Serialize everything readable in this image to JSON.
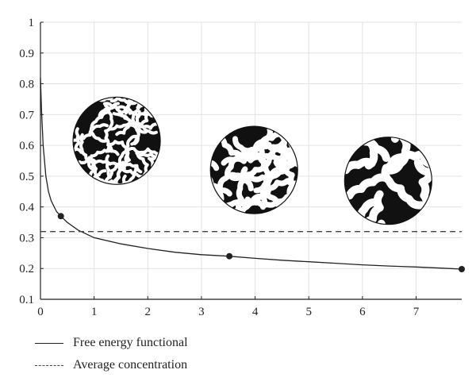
{
  "chart_data": {
    "type": "line",
    "xlim": [
      0,
      7.85
    ],
    "ylim": [
      0.1,
      1.0
    ],
    "x_ticks": [
      0,
      1,
      2,
      3,
      4,
      5,
      6,
      7
    ],
    "y_ticks": [
      0.1,
      0.2,
      0.3,
      0.4,
      0.5,
      0.6,
      0.7,
      0.8,
      0.9,
      1.0
    ],
    "x_tick_labels": [
      "0",
      "1",
      "2",
      "3",
      "4",
      "5",
      "6",
      "7"
    ],
    "y_tick_labels": [
      "0.1",
      "0.2",
      "0.3",
      "0.4",
      "0.5",
      "0.6",
      "0.7",
      "0.8",
      "0.9",
      "1"
    ],
    "grid": true,
    "series": [
      {
        "name": "Free energy functional",
        "style": "solid",
        "x": [
          0.0,
          0.02,
          0.05,
          0.1,
          0.15,
          0.2,
          0.3,
          0.38,
          0.5,
          0.7,
          1.0,
          1.5,
          2.0,
          2.5,
          3.0,
          3.5,
          4.0,
          4.5,
          5.0,
          5.5,
          6.0,
          6.5,
          7.0,
          7.5,
          7.85
        ],
        "y": [
          0.82,
          0.71,
          0.6,
          0.5,
          0.45,
          0.42,
          0.385,
          0.37,
          0.35,
          0.325,
          0.3,
          0.28,
          0.265,
          0.253,
          0.245,
          0.24,
          0.233,
          0.227,
          0.222,
          0.217,
          0.212,
          0.208,
          0.205,
          0.201,
          0.198
        ]
      },
      {
        "name": "Average concentration",
        "style": "dashed",
        "x": [
          0,
          7.85
        ],
        "y": [
          0.32,
          0.32
        ]
      }
    ],
    "markers": [
      {
        "x": 0.38,
        "y": 0.37
      },
      {
        "x": 3.52,
        "y": 0.24
      },
      {
        "x": 7.85,
        "y": 0.198
      }
    ],
    "insets": [
      {
        "x": 1.42,
        "y": 0.615,
        "pattern": "fine labyrinth"
      },
      {
        "x": 3.98,
        "y": 0.52,
        "pattern": "medium labyrinth"
      },
      {
        "x": 6.48,
        "y": 0.485,
        "pattern": "coarse labyrinth"
      }
    ]
  },
  "legend": {
    "free_energy_label": "Free energy functional",
    "average_concentration_label": "Average concentration"
  },
  "colors": {
    "line": "#222222",
    "dashed": "#444444",
    "grid": "#e3e3e3",
    "pattern_dark": "#111111"
  }
}
